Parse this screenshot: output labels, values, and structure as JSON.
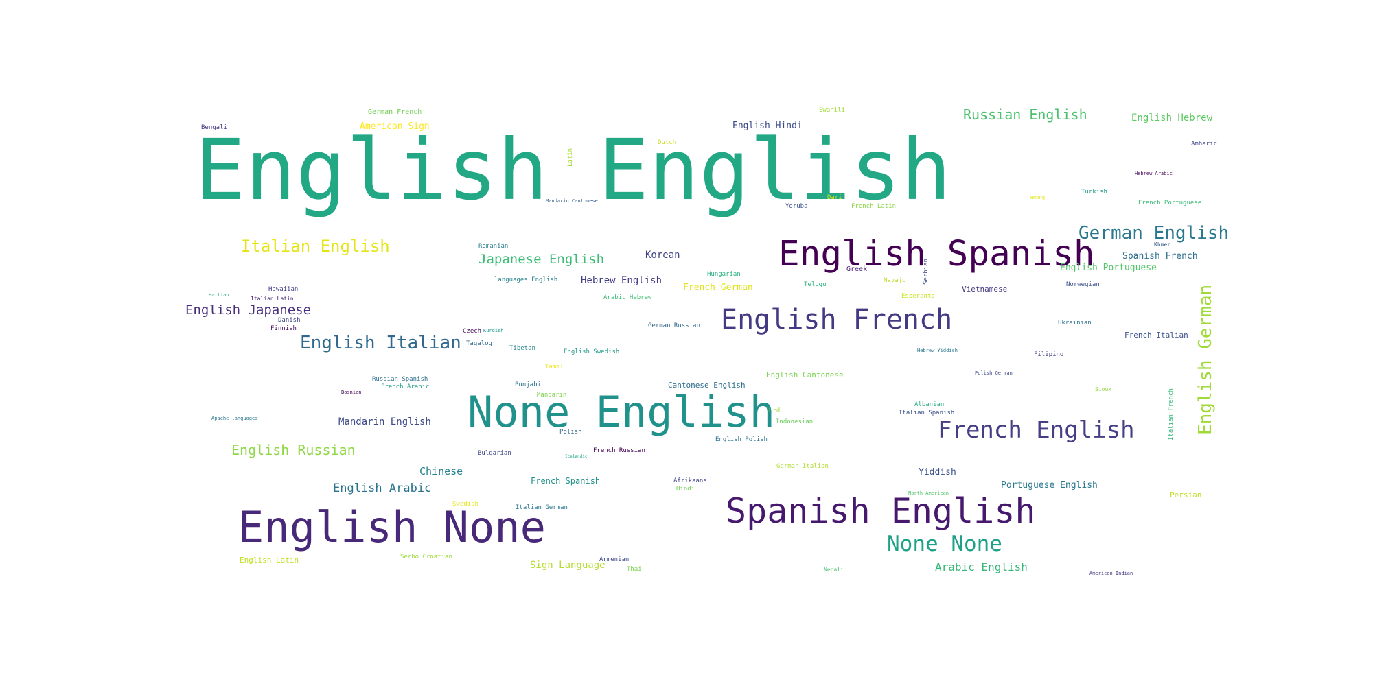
{
  "words": [
    {
      "text": "English English",
      "color": "#22a884"
    },
    {
      "text": "English Spanish",
      "color": "#440154"
    },
    {
      "text": "None English",
      "color": "#21918c"
    },
    {
      "text": "English None",
      "color": "#482878"
    },
    {
      "text": "Spanish English",
      "color": "#46186e"
    },
    {
      "text": "English French",
      "color": "#443a83"
    },
    {
      "text": "French English",
      "color": "#433e85"
    },
    {
      "text": "English Italian",
      "color": "#31688e"
    },
    {
      "text": "None None",
      "color": "#1fa187"
    },
    {
      "text": "German English",
      "color": "#2a788e"
    },
    {
      "text": "Italian English",
      "color": "#e5e419"
    },
    {
      "text": "English German",
      "color": "#a0da39"
    },
    {
      "text": "Russian English",
      "color": "#4ac16d"
    },
    {
      "text": "English Russian",
      "color": "#8fd744"
    },
    {
      "text": "Japanese English",
      "color": "#3bbb75"
    },
    {
      "text": "English Japanese",
      "color": "#472f7d"
    },
    {
      "text": "Arabic English",
      "color": "#35b779"
    },
    {
      "text": "English Arabic",
      "color": "#2c728e"
    },
    {
      "text": "Mandarin English",
      "color": "#3e4a89"
    },
    {
      "text": "Chinese",
      "color": "#26828e"
    },
    {
      "text": "Korean",
      "color": "#414487"
    },
    {
      "text": "Hebrew English",
      "color": "#433e85"
    },
    {
      "text": "English Hebrew",
      "color": "#5ec962"
    },
    {
      "text": "English Hindi",
      "color": "#3e4c8a"
    },
    {
      "text": "Spanish French",
      "color": "#2d708e"
    },
    {
      "text": "English Portuguese",
      "color": "#54c568"
    },
    {
      "text": "Portuguese English",
      "color": "#2a788e"
    },
    {
      "text": "Sign Language",
      "color": "#b5de2b"
    },
    {
      "text": "French Spanish",
      "color": "#20928c"
    },
    {
      "text": "Cantonese English",
      "color": "#2e6f8e"
    },
    {
      "text": "English Cantonese",
      "color": "#7ad151"
    },
    {
      "text": "English Latin",
      "color": "#c2df23"
    },
    {
      "text": "Yiddish",
      "color": "#3b518b"
    },
    {
      "text": "Persian",
      "color": "#bddf26"
    },
    {
      "text": "French Italian",
      "color": "#3b528b"
    },
    {
      "text": "Vietnamese",
      "color": "#453781"
    },
    {
      "text": "American Sign",
      "color": "#fde725"
    },
    {
      "text": "German French",
      "color": "#73d056"
    },
    {
      "text": "Bengali",
      "color": "#46337f"
    },
    {
      "text": "Swahili",
      "color": "#a2da37"
    },
    {
      "text": "Dutch",
      "color": "#c8e020"
    },
    {
      "text": "Amharic",
      "color": "#404688"
    },
    {
      "text": "Hebrew Arabic",
      "color": "#46075a"
    },
    {
      "text": "Turkish",
      "color": "#1f9a8a"
    },
    {
      "text": "French Portuguese",
      "color": "#3aba76"
    },
    {
      "text": "Hmong",
      "color": "#e2e418"
    },
    {
      "text": "Yoruba",
      "color": "#3b528b"
    },
    {
      "text": "Dari",
      "color": "#d0e11c"
    },
    {
      "text": "French Latin",
      "color": "#8bd646"
    },
    {
      "text": "Mandarin Cantonese",
      "color": "#355f8d"
    },
    {
      "text": "Latin",
      "color": "#a8db34"
    },
    {
      "text": "Khmer",
      "color": "#38598c"
    },
    {
      "text": "Romanian",
      "color": "#287d8e"
    },
    {
      "text": "languages English",
      "color": "#25848e"
    },
    {
      "text": "Greek",
      "color": "#481f70"
    },
    {
      "text": "Hungarian",
      "color": "#2ab07f"
    },
    {
      "text": "Navajo",
      "color": "#b8de29"
    },
    {
      "text": "Telugu",
      "color": "#2db27d"
    },
    {
      "text": "Norwegian",
      "color": "#3b518b"
    },
    {
      "text": "Esperanto",
      "color": "#cae11f"
    },
    {
      "text": "Serbian",
      "color": "#3c4f8a"
    },
    {
      "text": "French German",
      "color": "#e0e318"
    },
    {
      "text": "Arabic Hebrew",
      "color": "#3dbc74"
    },
    {
      "text": "Hawaiian",
      "color": "#424186"
    },
    {
      "text": "Italian Latin",
      "color": "#482475"
    },
    {
      "text": "Haitian",
      "color": "#2fb47c"
    },
    {
      "text": "Danish",
      "color": "#3f4788"
    },
    {
      "text": "Finnish",
      "color": "#470e61"
    },
    {
      "text": "Ukrainian",
      "color": "#2c718e"
    },
    {
      "text": "German Russian",
      "color": "#31688e"
    },
    {
      "text": "Czech",
      "color": "#450559"
    },
    {
      "text": "Kurdish",
      "color": "#1f988b"
    },
    {
      "text": "Tagalog",
      "color": "#30698e"
    },
    {
      "text": "Tibetan",
      "color": "#24878e"
    },
    {
      "text": "English Swedish",
      "color": "#1e9b8a"
    },
    {
      "text": "Filipino",
      "color": "#423f85"
    },
    {
      "text": "Hebrew Yiddish",
      "color": "#2a788e"
    },
    {
      "text": "Polish German",
      "color": "#3e4a89"
    },
    {
      "text": "Tamil",
      "color": "#f1e51d"
    },
    {
      "text": "Russian Spanish",
      "color": "#2d708e"
    },
    {
      "text": "French Arabic",
      "color": "#1f9e89"
    },
    {
      "text": "Bosnian",
      "color": "#440256"
    },
    {
      "text": "Punjabi",
      "color": "#2c728e"
    },
    {
      "text": "Mandarin",
      "color": "#7fd34e"
    },
    {
      "text": "Albanian",
      "color": "#26ad81"
    },
    {
      "text": "Italian Spanish",
      "color": "#3b528b"
    },
    {
      "text": "Urdu",
      "color": "#a5db36"
    },
    {
      "text": "Indonesian",
      "color": "#6ccd5a"
    },
    {
      "text": "Sioux",
      "color": "#95d840"
    },
    {
      "text": "Italian French",
      "color": "#35b779"
    },
    {
      "text": "Apache languages",
      "color": "#2a788e"
    },
    {
      "text": "Polish",
      "color": "#32658e"
    },
    {
      "text": "English Polish",
      "color": "#2c738e"
    },
    {
      "text": "Bulgarian",
      "color": "#3f4889"
    },
    {
      "text": "French Russian",
      "color": "#440154"
    },
    {
      "text": "German Italian",
      "color": "#b0dd2f"
    },
    {
      "text": "Afrikaans",
      "color": "#414487"
    },
    {
      "text": "Hindi",
      "color": "#70cf57"
    },
    {
      "text": "Swedish",
      "color": "#e7e419"
    },
    {
      "text": "Italian German",
      "color": "#2a788e"
    },
    {
      "text": "Serbo Croatian",
      "color": "#9dd93b"
    },
    {
      "text": "Armenian",
      "color": "#3e4989"
    },
    {
      "text": "Thai",
      "color": "#7ad151"
    },
    {
      "text": "Nepali",
      "color": "#4ac16d"
    },
    {
      "text": "North American",
      "color": "#52c569"
    },
    {
      "text": "American Indian",
      "color": "#453882"
    },
    {
      "text": "Icelandic",
      "color": "#20a486"
    }
  ]
}
